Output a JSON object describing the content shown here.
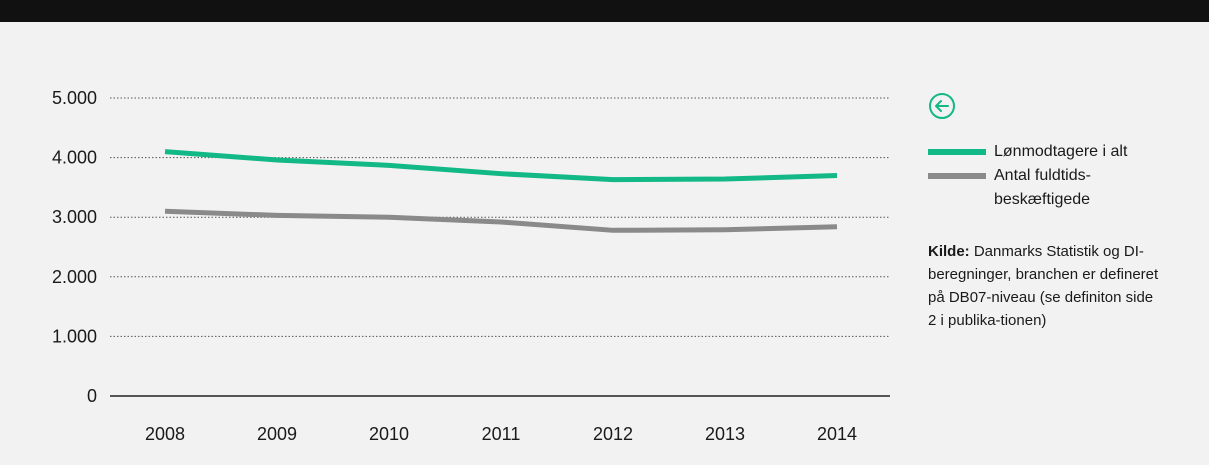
{
  "colors": {
    "series_green": "#12b886",
    "series_grey": "#8a8a8a",
    "accent": "#12b886"
  },
  "nav": {
    "back_icon": "arrow-left-circle-icon"
  },
  "legend": {
    "items": [
      {
        "label": "Lønmodtagere i alt",
        "color": "#12b886"
      },
      {
        "label": "Antal fuldtids-beskæftigede",
        "color": "#8a8a8a"
      }
    ]
  },
  "source": {
    "label": "Kilde:",
    "text": "Danmarks Statistik og DI-beregninger, branchen er defineret på DB07-niveau (se definiton side 2 i publika-tionen)"
  },
  "chart_data": {
    "type": "line",
    "categories": [
      "2008",
      "2009",
      "2010",
      "2011",
      "2012",
      "2013",
      "2014"
    ],
    "yticks": [
      "0",
      "1.000",
      "2.000",
      "3.000",
      "4.000",
      "5.000"
    ],
    "ylim": [
      0,
      5000
    ],
    "grid": "dotted horizontal",
    "legend_position": "right",
    "series": [
      {
        "name": "Lønmodtagere i alt",
        "color": "#12b886",
        "values": [
          4100,
          3960,
          3870,
          3730,
          3630,
          3640,
          3700
        ]
      },
      {
        "name": "Antal fuldtids-beskæftigede",
        "color": "#8a8a8a",
        "values": [
          3100,
          3030,
          3000,
          2920,
          2780,
          2790,
          2840
        ]
      }
    ]
  }
}
